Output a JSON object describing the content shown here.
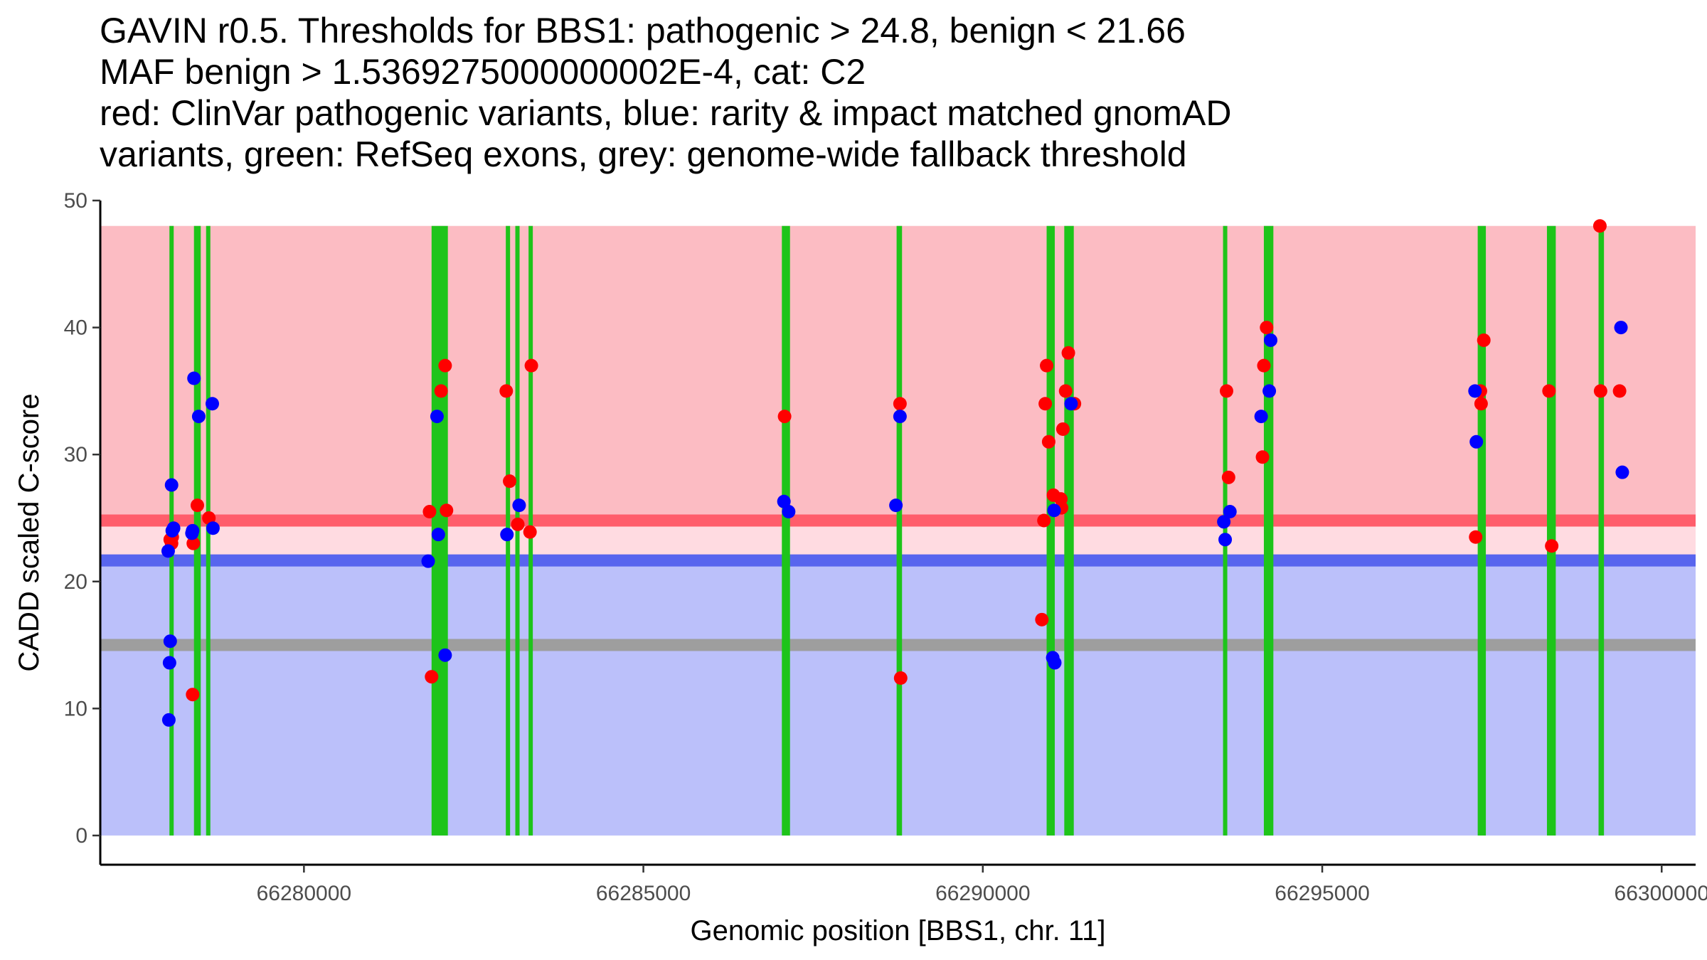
{
  "chart_data": {
    "type": "scatter",
    "title_lines": [
      "GAVIN r0.5. Thresholds for BBS1: pathogenic > 24.8, benign < 21.66",
      "MAF benign > 1.5369275000000002E-4, cat: C2",
      "red: ClinVar pathogenic variants, blue: rarity & impact matched gnomAD",
      "variants, green: RefSeq exons, grey: genome-wide fallback threshold"
    ],
    "xlabel": "Genomic position [BBS1, chr. 11]",
    "ylabel": "CADD scaled C-score",
    "xlim": [
      66277000,
      66300500
    ],
    "ylim": [
      -2.3,
      50
    ],
    "x_ticks": [
      66280000,
      66285000,
      66290000,
      66295000,
      66300000
    ],
    "x_tick_labels": [
      "66280000",
      "66285000",
      "66290000",
      "66295000",
      "66300000"
    ],
    "y_ticks": [
      0,
      10,
      20,
      30,
      40,
      50
    ],
    "y_tick_labels": [
      "0",
      "10",
      "20",
      "30",
      "40",
      "50"
    ],
    "regions": [
      {
        "name": "pathogenic-region",
        "y_from": 24.8,
        "y_to": 48,
        "color": "#fcbcc3"
      },
      {
        "name": "uncertain-region",
        "y_from": 21.66,
        "y_to": 24.8,
        "color": "#ffdbe1"
      },
      {
        "name": "benign-region",
        "y_from": 0,
        "y_to": 21.66,
        "color": "#bbc0fa"
      }
    ],
    "threshold_lines": [
      {
        "name": "pathogenic-threshold",
        "y": 24.8,
        "color": "#ff5d6b"
      },
      {
        "name": "benign-threshold",
        "y": 21.66,
        "color": "#5865ee"
      },
      {
        "name": "fallback-threshold",
        "y": 15,
        "color": "#9e9e9e"
      }
    ],
    "exons": [
      {
        "start": 66278020,
        "end": 66278080
      },
      {
        "start": 66278380,
        "end": 66278480
      },
      {
        "start": 66278560,
        "end": 66278620
      },
      {
        "start": 66281880,
        "end": 66282120
      },
      {
        "start": 66282980,
        "end": 66283030
      },
      {
        "start": 66283120,
        "end": 66283170
      },
      {
        "start": 66283310,
        "end": 66283370
      },
      {
        "start": 66287040,
        "end": 66287160
      },
      {
        "start": 66288730,
        "end": 66288810
      },
      {
        "start": 66290940,
        "end": 66291060
      },
      {
        "start": 66291200,
        "end": 66291340
      },
      {
        "start": 66293540,
        "end": 66293600
      },
      {
        "start": 66294140,
        "end": 66294280
      },
      {
        "start": 66297290,
        "end": 66297410
      },
      {
        "start": 66298310,
        "end": 66298440
      },
      {
        "start": 66299070,
        "end": 66299150
      }
    ],
    "series": [
      {
        "name": "ClinVar pathogenic variants",
        "color": "#ff0000",
        "points": [
          [
            66278030,
            23.3
          ],
          [
            66278050,
            23.0
          ],
          [
            66278060,
            23.5
          ],
          [
            66278360,
            11.1
          ],
          [
            66278370,
            23.0
          ],
          [
            66278430,
            26.0
          ],
          [
            66278600,
            25.0
          ],
          [
            66281850,
            25.5
          ],
          [
            66281880,
            12.5
          ],
          [
            66282020,
            35.0
          ],
          [
            66282080,
            37.0
          ],
          [
            66282100,
            25.6
          ],
          [
            66282980,
            35.0
          ],
          [
            66283030,
            27.9
          ],
          [
            66283150,
            24.5
          ],
          [
            66283330,
            23.9
          ],
          [
            66283350,
            37.0
          ],
          [
            66287080,
            33.0
          ],
          [
            66288780,
            34.0
          ],
          [
            66288790,
            12.4
          ],
          [
            66290870,
            17.0
          ],
          [
            66290900,
            24.8
          ],
          [
            66290920,
            34.0
          ],
          [
            66290940,
            37.0
          ],
          [
            66290970,
            31.0
          ],
          [
            66291040,
            26.8
          ],
          [
            66291150,
            26.5
          ],
          [
            66291160,
            25.8
          ],
          [
            66291180,
            32.0
          ],
          [
            66291220,
            35.0
          ],
          [
            66291260,
            38.0
          ],
          [
            66291350,
            34.0
          ],
          [
            66293590,
            35.0
          ],
          [
            66293620,
            28.2
          ],
          [
            66294120,
            29.8
          ],
          [
            66294140,
            37.0
          ],
          [
            66294180,
            40.0
          ],
          [
            66297260,
            23.5
          ],
          [
            66297330,
            35.0
          ],
          [
            66297340,
            34.0
          ],
          [
            66297380,
            39.0
          ],
          [
            66298340,
            35.0
          ],
          [
            66298380,
            22.8
          ],
          [
            66299090,
            48.0
          ],
          [
            66299100,
            35.0
          ],
          [
            66299380,
            35.0
          ]
        ]
      },
      {
        "name": "gnomAD matched variants",
        "color": "#0000ff",
        "points": [
          [
            66278000,
            22.4
          ],
          [
            66278010,
            9.1
          ],
          [
            66278020,
            13.6
          ],
          [
            66278030,
            15.3
          ],
          [
            66278050,
            27.6
          ],
          [
            66278060,
            24.0
          ],
          [
            66278080,
            24.2
          ],
          [
            66278350,
            23.8
          ],
          [
            66278360,
            24.0
          ],
          [
            66278380,
            36.0
          ],
          [
            66278450,
            33.0
          ],
          [
            66278650,
            34.0
          ],
          [
            66278660,
            24.2
          ],
          [
            66281830,
            21.6
          ],
          [
            66281960,
            33.0
          ],
          [
            66281980,
            23.7
          ],
          [
            66282080,
            14.2
          ],
          [
            66282990,
            23.7
          ],
          [
            66283170,
            26.0
          ],
          [
            66287070,
            26.3
          ],
          [
            66287140,
            25.5
          ],
          [
            66288720,
            26.0
          ],
          [
            66288780,
            33.0
          ],
          [
            66291030,
            14.0
          ],
          [
            66291050,
            25.6
          ],
          [
            66291060,
            13.6
          ],
          [
            66291300,
            34.0
          ],
          [
            66293550,
            24.7
          ],
          [
            66293570,
            23.3
          ],
          [
            66293640,
            25.5
          ],
          [
            66294100,
            33.0
          ],
          [
            66294220,
            35.0
          ],
          [
            66294240,
            39.0
          ],
          [
            66297250,
            35.0
          ],
          [
            66297270,
            31.0
          ],
          [
            66299400,
            40.0
          ],
          [
            66299420,
            28.6
          ]
        ]
      }
    ]
  }
}
